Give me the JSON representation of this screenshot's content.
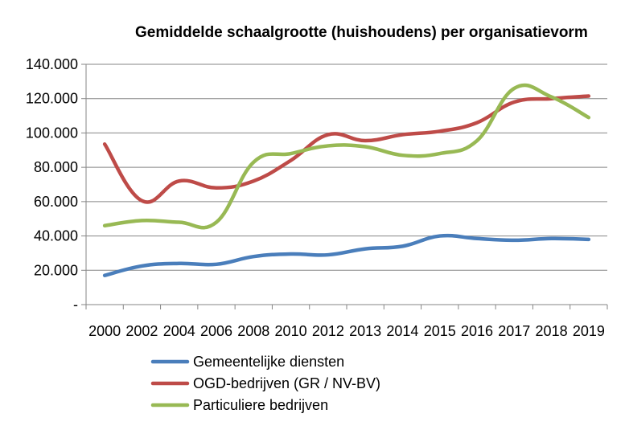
{
  "chart_data": {
    "type": "line",
    "title": "Gemiddelde schaalgrootte (huishoudens) per organisatievorm",
    "xlabel": "",
    "ylabel": "",
    "categories": [
      "2000",
      "2002",
      "2004",
      "2006",
      "2008",
      "2010",
      "2012",
      "2013",
      "2014",
      "2015",
      "2016",
      "2017",
      "2018",
      "2019"
    ],
    "ylim": [
      0,
      140000
    ],
    "yticks": [
      {
        "value": 0,
        "label": "-"
      },
      {
        "value": 20000,
        "label": "20.000"
      },
      {
        "value": 40000,
        "label": "40.000"
      },
      {
        "value": 60000,
        "label": "60.000"
      },
      {
        "value": 80000,
        "label": "80.000"
      },
      {
        "value": 100000,
        "label": "100.000"
      },
      {
        "value": 120000,
        "label": "120.000"
      },
      {
        "value": 140000,
        "label": "140.000"
      }
    ],
    "grid": true,
    "legend_position": "bottom",
    "series": [
      {
        "name": "Gemeentelijke diensten",
        "color": "#4A7EBB",
        "values": [
          17000,
          22500,
          24000,
          23500,
          28000,
          29500,
          29000,
          32500,
          34000,
          40000,
          38500,
          37500,
          38500,
          38000
        ]
      },
      {
        "name": "OGD-bedrijven (GR / NV-BV)",
        "color": "#BE4B48",
        "values": [
          93500,
          60500,
          72000,
          68000,
          72000,
          84000,
          99000,
          95500,
          99000,
          101000,
          106000,
          118000,
          120000,
          121500
        ]
      },
      {
        "name": "Particuliere bedrijven",
        "color": "#98B954",
        "values": [
          46000,
          49000,
          48000,
          48000,
          83000,
          88000,
          92500,
          92000,
          87000,
          88000,
          95500,
          126000,
          121000,
          109000
        ]
      }
    ]
  }
}
